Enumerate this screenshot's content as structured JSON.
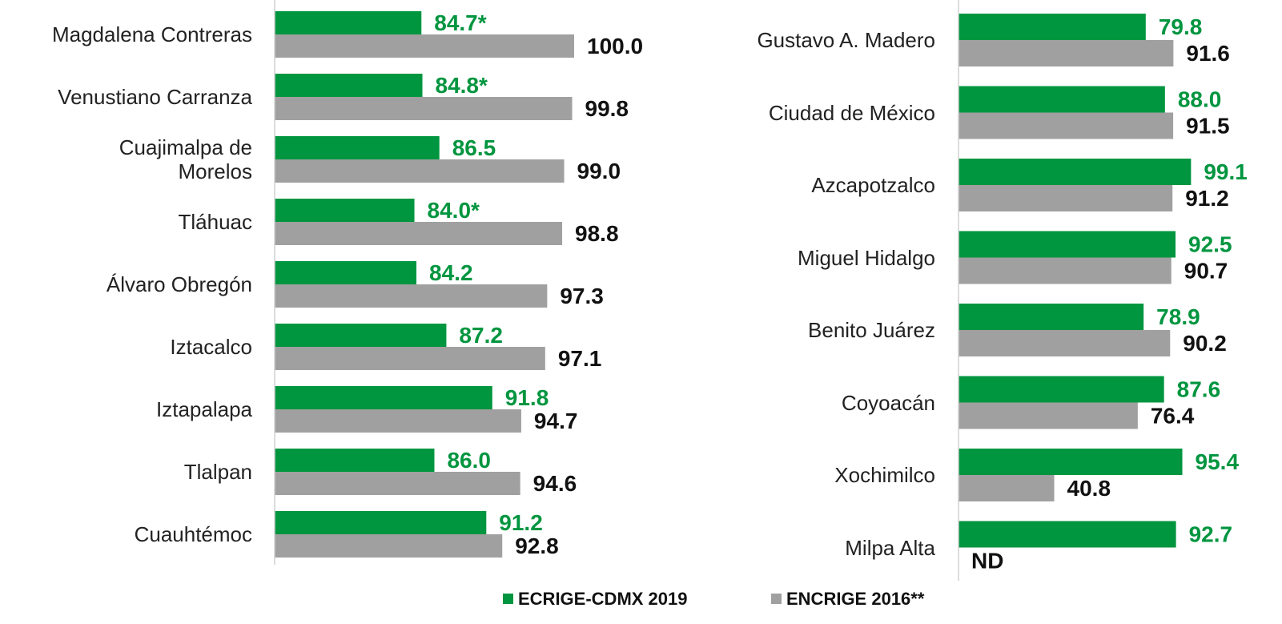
{
  "chart_data": [
    {
      "type": "bar",
      "orientation": "horizontal",
      "categories": [
        "Magdalena Contreras",
        "Venustiano Carranza",
        "Cuajimalpa de\nMorelos",
        "Tláhuac",
        "Álvaro Obregón",
        "Iztacalco",
        "Iztapalapa",
        "Tlalpan",
        "Cuauhtémoc"
      ],
      "xlim": [
        70,
        100
      ],
      "series": [
        {
          "name": "ECRIGE-CDMX 2019",
          "color": "#00953f",
          "values": [
            84.7,
            84.8,
            86.5,
            84.0,
            84.2,
            87.2,
            91.8,
            86.0,
            91.2
          ],
          "value_labels": [
            "84.7*",
            "84.8*",
            "86.5",
            "84.0*",
            "84.2",
            "87.2",
            "91.8",
            "86.0",
            "91.2"
          ]
        },
        {
          "name": "ENCRIGE 2016**",
          "color": "#a0a0a0",
          "values": [
            100.0,
            99.8,
            99.0,
            98.8,
            97.3,
            97.1,
            94.7,
            94.6,
            92.8
          ],
          "value_labels": [
            "100.0",
            "99.8",
            "99.0",
            "98.8",
            "97.3",
            "97.1",
            "94.7",
            "94.6",
            "92.8"
          ]
        }
      ]
    },
    {
      "type": "bar",
      "orientation": "horizontal",
      "categories": [
        "Gustavo A. Madero",
        "Ciudad de México",
        "Azcapotzalco",
        "Miguel Hidalgo",
        "Benito Juárez",
        "Coyoacán",
        "Xochimilco",
        "Milpa Alta"
      ],
      "xlim": [
        0,
        100
      ],
      "series": [
        {
          "color": "#00953f",
          "values": [
            79.8,
            88.0,
            99.1,
            92.5,
            78.9,
            87.6,
            95.4,
            92.7
          ],
          "value_labels": [
            "79.8",
            "88.0",
            "99.1",
            "92.5",
            "78.9",
            "87.6",
            "95.4",
            "92.7"
          ]
        },
        {
          "color": "#a0a0a0",
          "values": [
            91.6,
            91.5,
            91.2,
            90.7,
            90.2,
            76.4,
            40.8,
            null
          ],
          "value_labels": [
            "91.6",
            "91.5",
            "91.2",
            "90.7",
            "90.2",
            "76.4",
            "40.8",
            "ND"
          ]
        }
      ]
    }
  ]
}
